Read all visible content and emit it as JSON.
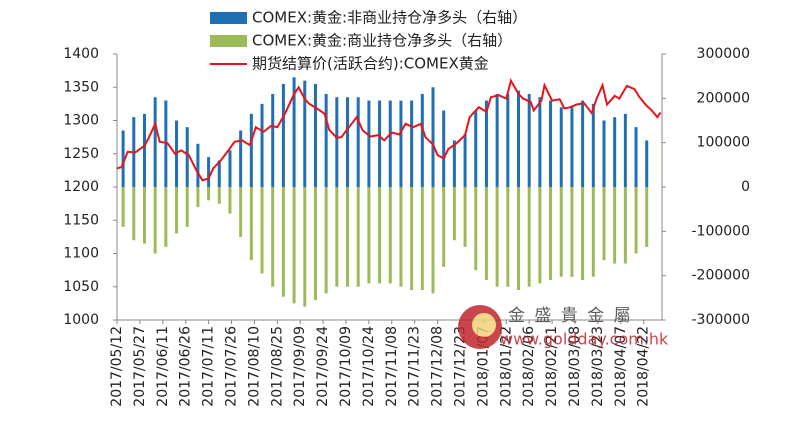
{
  "chart_data": {
    "type": "combo",
    "series": [
      {
        "name": "COMEX:黄金:非商业持仓净多头（右轴）",
        "type": "bar",
        "axis": "y2",
        "color": "#1f6fb4",
        "x": [
          "2017/05/16",
          "2017/05/23",
          "2017/05/30",
          "2017/06/06",
          "2017/06/13",
          "2017/06/20",
          "2017/06/27",
          "2017/07/04",
          "2017/07/11",
          "2017/07/18",
          "2017/07/25",
          "2017/08/01",
          "2017/08/08",
          "2017/08/15",
          "2017/08/22",
          "2017/08/29",
          "2017/09/05",
          "2017/09/12",
          "2017/09/19",
          "2017/09/26",
          "2017/10/03",
          "2017/10/10",
          "2017/10/17",
          "2017/10/24",
          "2017/10/31",
          "2017/11/07",
          "2017/11/14",
          "2017/11/21",
          "2017/11/28",
          "2017/12/05",
          "2017/12/12",
          "2017/12/19",
          "2017/12/26",
          "2018/01/02",
          "2018/01/09",
          "2018/01/16",
          "2018/01/23",
          "2018/01/30",
          "2018/02/06",
          "2018/02/13",
          "2018/02/20",
          "2018/02/27",
          "2018/03/06",
          "2018/03/13",
          "2018/03/20",
          "2018/03/27",
          "2018/04/03",
          "2018/04/10",
          "2018/04/17",
          "2018/04/24"
        ],
        "values": [
          127500,
          157500,
          165000,
          202500,
          195000,
          150000,
          135000,
          97500,
          67500,
          60000,
          82500,
          127500,
          165000,
          187500,
          210000,
          232500,
          247500,
          240000,
          232500,
          210000,
          202500,
          202500,
          202500,
          195000,
          195000,
          195000,
          195000,
          195000,
          210000,
          225000,
          172500,
          105000,
          120000,
          172500,
          195000,
          210000,
          210000,
          217500,
          210000,
          202500,
          195000,
          180000,
          180000,
          195000,
          187500,
          150000,
          157500,
          165000,
          135000,
          105000
        ]
      },
      {
        "name": "COMEX:黄金:商业持仓净多头（右轴）",
        "type": "bar",
        "axis": "y2",
        "color": "#9bbb59",
        "x": [
          "2017/05/16",
          "2017/05/23",
          "2017/05/30",
          "2017/06/06",
          "2017/06/13",
          "2017/06/20",
          "2017/06/27",
          "2017/07/04",
          "2017/07/11",
          "2017/07/18",
          "2017/07/25",
          "2017/08/01",
          "2017/08/08",
          "2017/08/15",
          "2017/08/22",
          "2017/08/29",
          "2017/09/05",
          "2017/09/12",
          "2017/09/19",
          "2017/09/26",
          "2017/10/03",
          "2017/10/10",
          "2017/10/17",
          "2017/10/24",
          "2017/10/31",
          "2017/11/07",
          "2017/11/14",
          "2017/11/21",
          "2017/11/28",
          "2017/12/05",
          "2017/12/12",
          "2017/12/19",
          "2017/12/26",
          "2018/01/02",
          "2018/01/09",
          "2018/01/16",
          "2018/01/23",
          "2018/01/30",
          "2018/02/06",
          "2018/02/13",
          "2018/02/20",
          "2018/02/27",
          "2018/03/06",
          "2018/03/13",
          "2018/03/20",
          "2018/03/27",
          "2018/04/03",
          "2018/04/10",
          "2018/04/17",
          "2018/04/24"
        ],
        "values": [
          -90000,
          -120000,
          -127500,
          -150000,
          -135000,
          -105000,
          -90000,
          -45000,
          -30000,
          -37500,
          -60000,
          -112500,
          -165000,
          -195000,
          -225000,
          -247500,
          -262500,
          -270000,
          -255000,
          -240000,
          -225000,
          -225000,
          -225000,
          -217500,
          -217500,
          -217500,
          -225000,
          -232500,
          -232500,
          -240000,
          -180000,
          -120000,
          -135000,
          -187500,
          -210000,
          -225000,
          -225000,
          -232500,
          -225000,
          -217500,
          -210000,
          -202500,
          -202500,
          -210000,
          -202500,
          -165000,
          -172500,
          -172500,
          -150000,
          -135000
        ]
      },
      {
        "name": "期货结算价(活跃合约):COMEX黄金",
        "type": "line",
        "axis": "y",
        "color": "#e8141c",
        "x": [
          "2017/05/12",
          "2017/05/15",
          "2017/05/19",
          "2017/05/24",
          "2017/05/30",
          "2017/06/02",
          "2017/06/06",
          "2017/06/09",
          "2017/06/14",
          "2017/06/19",
          "2017/06/23",
          "2017/06/28",
          "2017/07/03",
          "2017/07/07",
          "2017/07/11",
          "2017/07/14",
          "2017/07/19",
          "2017/07/24",
          "2017/07/28",
          "2017/08/02",
          "2017/08/07",
          "2017/08/11",
          "2017/08/16",
          "2017/08/21",
          "2017/08/25",
          "2017/08/30",
          "2017/09/05",
          "2017/09/08",
          "2017/09/12",
          "2017/09/15",
          "2017/09/20",
          "2017/09/25",
          "2017/09/28",
          "2017/10/03",
          "2017/10/06",
          "2017/10/11",
          "2017/10/16",
          "2017/10/20",
          "2017/10/25",
          "2017/10/30",
          "2017/11/03",
          "2017/11/08",
          "2017/11/13",
          "2017/11/17",
          "2017/11/22",
          "2017/11/27",
          "2017/11/30",
          "2017/12/05",
          "2017/12/08",
          "2017/12/12",
          "2017/12/15",
          "2017/12/20",
          "2017/12/26",
          "2017/12/29",
          "2018/01/04",
          "2018/01/09",
          "2018/01/12",
          "2018/01/17",
          "2018/01/22",
          "2018/01/25",
          "2018/01/30",
          "2018/02/02",
          "2018/02/07",
          "2018/02/09",
          "2018/02/14",
          "2018/02/16",
          "2018/02/21",
          "2018/02/26",
          "2018/03/01",
          "2018/03/05",
          "2018/03/09",
          "2018/03/14",
          "2018/03/19",
          "2018/03/22",
          "2018/03/26",
          "2018/03/29",
          "2018/04/03",
          "2018/04/06",
          "2018/04/11",
          "2018/04/16",
          "2018/04/19",
          "2018/04/24",
          "2018/04/27",
          "2018/05/01",
          "2018/05/03"
        ],
        "values": [
          1228,
          1230,
          1253,
          1252,
          1262,
          1275,
          1295,
          1268,
          1266,
          1250,
          1255,
          1248,
          1225,
          1210,
          1213,
          1228,
          1240,
          1255,
          1268,
          1270,
          1263,
          1290,
          1283,
          1292,
          1290,
          1310,
          1340,
          1350,
          1332,
          1325,
          1318,
          1310,
          1286,
          1274,
          1275,
          1290,
          1305,
          1285,
          1276,
          1278,
          1270,
          1282,
          1279,
          1295,
          1290,
          1295,
          1275,
          1264,
          1248,
          1243,
          1257,
          1265,
          1278,
          1305,
          1320,
          1313,
          1335,
          1338,
          1333,
          1360,
          1340,
          1333,
          1328,
          1315,
          1330,
          1353,
          1330,
          1332,
          1318,
          1320,
          1324,
          1326,
          1311,
          1332,
          1353,
          1324,
          1337,
          1333,
          1352,
          1347,
          1336,
          1322,
          1316,
          1305,
          1312
        ]
      }
    ],
    "xlim": [
      "2017/05/12",
      "2018/05/04"
    ],
    "xticks": [
      "2017/05/12",
      "2017/05/27",
      "2017/06/11",
      "2017/06/26",
      "2017/07/11",
      "2017/07/26",
      "2017/08/10",
      "2017/08/25",
      "2017/09/09",
      "2017/09/24",
      "2017/10/09",
      "2017/10/24",
      "2017/11/08",
      "2017/11/23",
      "2017/12/08",
      "2017/12/23",
      "2018/01/07",
      "2018/01/22",
      "2018/02/06",
      "2018/02/21",
      "2018/03/08",
      "2018/03/23",
      "2018/04/07",
      "2018/04/22"
    ],
    "ylim": [
      1000,
      1400
    ],
    "yticks": [
      1000,
      1050,
      1100,
      1150,
      1200,
      1250,
      1300,
      1350,
      1400
    ],
    "y2lim": [
      -300000,
      300000
    ],
    "y2ticks": [
      -300000,
      -200000,
      -100000,
      0,
      100000,
      200000,
      300000
    ],
    "watermark": {
      "brand": "金 盛 貴 金 屬",
      "url": "www.goldday.com.hk"
    }
  }
}
